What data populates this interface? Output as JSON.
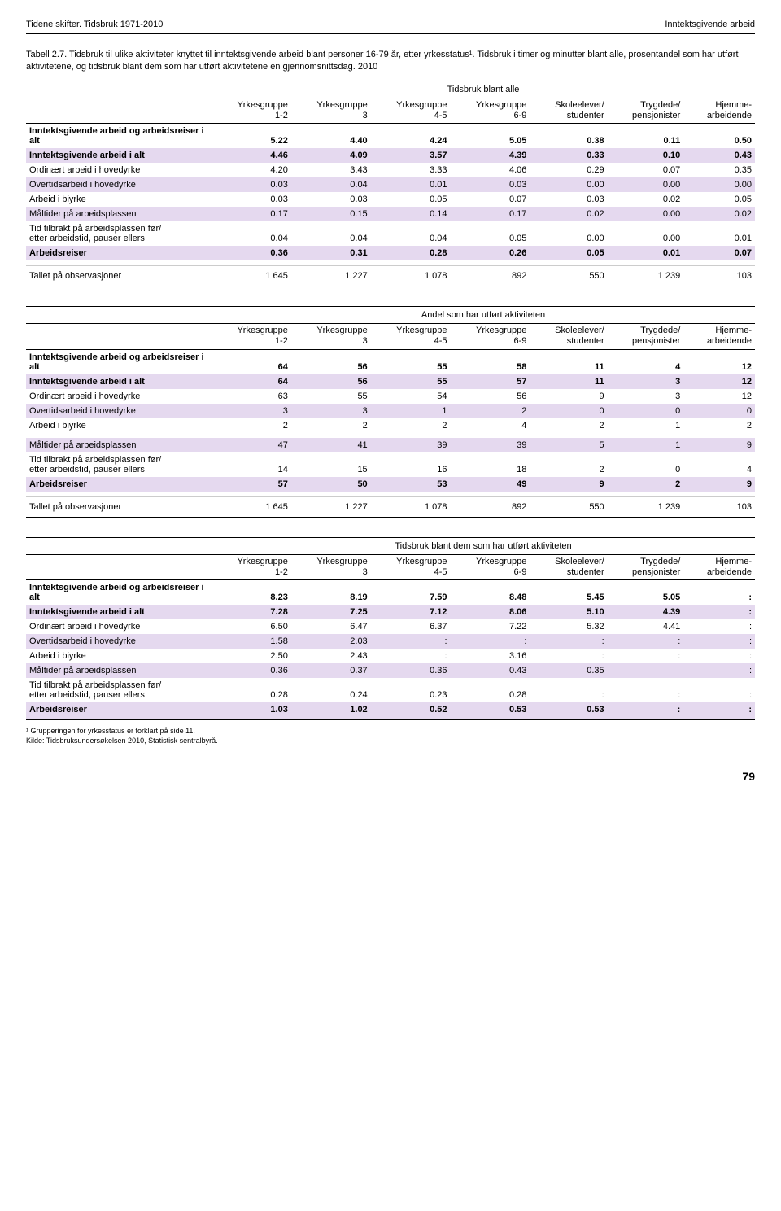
{
  "header": {
    "left": "Tidene skifter. Tidsbruk 1971-2010",
    "right": "Inntektsgivende arbeid"
  },
  "caption": "Tabell 2.7. Tidsbruk til ulike aktiviteter knyttet til inntektsgivende arbeid blant personer 16-79 år, etter yrkesstatus¹. Tidsbruk i timer og minutter blant alle, prosentandel som har utført aktivitetene, og tidsbruk blant dem som har utført aktivitetene en gjennomsnittsdag. 2010",
  "columns": [
    {
      "l1": "Yrkesgruppe",
      "l2": "1-2"
    },
    {
      "l1": "Yrkesgruppe",
      "l2": "3"
    },
    {
      "l1": "Yrkesgruppe",
      "l2": "4-5"
    },
    {
      "l1": "Yrkesgruppe",
      "l2": "6-9"
    },
    {
      "l1": "Skoleelever/",
      "l2": "studenter"
    },
    {
      "l1": "Trygdede/",
      "l2": "pensjonister"
    },
    {
      "l1": "Hjemme-",
      "l2": "arbeidende"
    }
  ],
  "row_labels": {
    "r0": "Inntektsgivende arbeid og arbeidsreiser i alt",
    "r1": "Inntektsgivende arbeid i alt",
    "r2": "Ordinært arbeid i hovedyrke",
    "r3": "Overtidsarbeid i hovedyrke",
    "r4": "Arbeid i biyrke",
    "r5": "Måltider på arbeidsplassen",
    "r6a": "Tid tilbrakt på arbeidsplassen før/",
    "r6b": "etter arbeidstid, pauser ellers",
    "r7": "Arbeidsreiser",
    "r8": "Tallet på observasjoner"
  },
  "table1": {
    "super": "Tidsbruk blant alle",
    "rows": [
      [
        "5.22",
        "4.40",
        "4.24",
        "5.05",
        "0.38",
        "0.11",
        "0.50"
      ],
      [
        "4.46",
        "4.09",
        "3.57",
        "4.39",
        "0.33",
        "0.10",
        "0.43"
      ],
      [
        "4.20",
        "3.43",
        "3.33",
        "4.06",
        "0.29",
        "0.07",
        "0.35"
      ],
      [
        "0.03",
        "0.04",
        "0.01",
        "0.03",
        "0.00",
        "0.00",
        "0.00"
      ],
      [
        "0.03",
        "0.03",
        "0.05",
        "0.07",
        "0.03",
        "0.02",
        "0.05"
      ],
      [
        "0.17",
        "0.15",
        "0.14",
        "0.17",
        "0.02",
        "0.00",
        "0.02"
      ],
      [
        "0.04",
        "0.04",
        "0.04",
        "0.05",
        "0.00",
        "0.00",
        "0.01"
      ],
      [
        "0.36",
        "0.31",
        "0.28",
        "0.26",
        "0.05",
        "0.01",
        "0.07"
      ],
      [
        "1 645",
        "1 227",
        "1 078",
        "892",
        "550",
        "1 239",
        "103"
      ]
    ]
  },
  "table2": {
    "super": "Andel som har utført aktiviteten",
    "rows": [
      [
        "64",
        "56",
        "55",
        "58",
        "11",
        "4",
        "12"
      ],
      [
        "64",
        "56",
        "55",
        "57",
        "11",
        "3",
        "12"
      ],
      [
        "63",
        "55",
        "54",
        "56",
        "9",
        "3",
        "12"
      ],
      [
        "3",
        "3",
        "1",
        "2",
        "0",
        "0",
        "0"
      ],
      [
        "2",
        "2",
        "2",
        "4",
        "2",
        "1",
        "2"
      ],
      [
        "47",
        "41",
        "39",
        "39",
        "5",
        "1",
        "9"
      ],
      [
        "14",
        "15",
        "16",
        "18",
        "2",
        "0",
        "4"
      ],
      [
        "57",
        "50",
        "53",
        "49",
        "9",
        "2",
        "9"
      ],
      [
        "1 645",
        "1 227",
        "1 078",
        "892",
        "550",
        "1 239",
        "103"
      ]
    ]
  },
  "table3": {
    "super": "Tidsbruk blant dem som har utført aktiviteten",
    "rows": [
      [
        "8.23",
        "8.19",
        "7.59",
        "8.48",
        "5.45",
        "5.05",
        ":"
      ],
      [
        "7.28",
        "7.25",
        "7.12",
        "8.06",
        "5.10",
        "4.39",
        ":"
      ],
      [
        "6.50",
        "6.47",
        "6.37",
        "7.22",
        "5.32",
        "4.41",
        ":"
      ],
      [
        "1.58",
        "2.03",
        ":",
        ":",
        ":",
        ":",
        ":"
      ],
      [
        "2.50",
        "2.43",
        ":",
        "3.16",
        ":",
        ":",
        ":"
      ],
      [
        "0.36",
        "0.37",
        "0.36",
        "0.43",
        "0.35",
        "",
        ":"
      ],
      [
        "0.28",
        "0.24",
        "0.23",
        "0.28",
        ":",
        ":",
        ":"
      ],
      [
        "1.03",
        "1.02",
        "0.52",
        "0.53",
        "0.53",
        ":",
        ":"
      ]
    ]
  },
  "footnote1": "¹ Grupperingen for yrkesstatus er forklart på side 11.",
  "footnote2": "Kilde: Tidsbruksundersøkelsen 2010, Statistisk sentralbyrå.",
  "page_num": "79"
}
